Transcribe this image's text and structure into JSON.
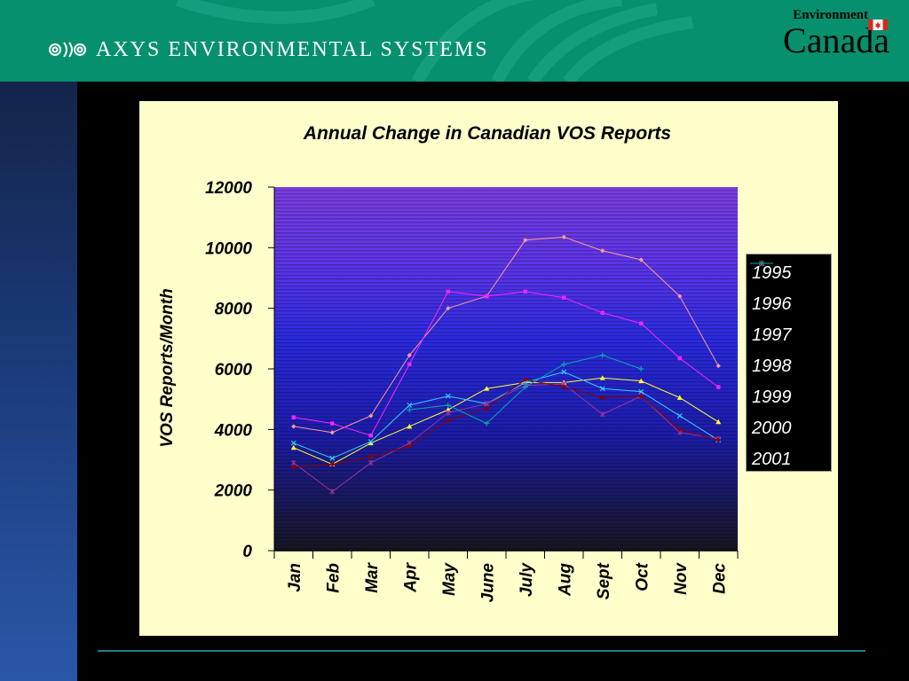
{
  "header": {
    "brand_text": "AXYS ENVIRONMENTAL SYSTEMS",
    "gov_dept": "Environment",
    "gov_country": "Canada",
    "color": "#06906e"
  },
  "chart_data": {
    "type": "line",
    "title": "Annual Change in Canadian VOS Reports",
    "xlabel": "",
    "ylabel": "VOS Reports/Month",
    "ylim": [
      0,
      12000
    ],
    "yticks": [
      0,
      2000,
      4000,
      6000,
      8000,
      10000,
      12000
    ],
    "categories": [
      "Jan",
      "Feb",
      "Mar",
      "Apr",
      "May",
      "June",
      "July",
      "Aug",
      "Sept",
      "Oct",
      "Nov",
      "Dec"
    ],
    "legend_position": "right",
    "series": [
      {
        "name": "1995",
        "color": "#ff9999",
        "marker": "diamond",
        "values": [
          4100,
          3900,
          4450,
          6450,
          8000,
          8400,
          10250,
          10350,
          9900,
          9600,
          8400,
          6100
        ]
      },
      {
        "name": "1996",
        "color": "#ff22ff",
        "marker": "square",
        "values": [
          4400,
          4200,
          3800,
          6150,
          8550,
          8400,
          8550,
          8350,
          7850,
          7500,
          6350,
          5400
        ]
      },
      {
        "name": "1997",
        "color": "#ffff33",
        "marker": "triangle",
        "values": [
          3400,
          2850,
          3550,
          4100,
          4650,
          5350,
          5550,
          5550,
          5700,
          5600,
          5050,
          4250
        ]
      },
      {
        "name": "1998",
        "color": "#33ccff",
        "marker": "x",
        "values": [
          3550,
          3050,
          3600,
          4800,
          5100,
          4850,
          5550,
          5900,
          5350,
          5250,
          4450,
          3650
        ]
      },
      {
        "name": "1999",
        "color": "#993399",
        "marker": "star",
        "values": [
          2900,
          1950,
          2900,
          3550,
          4550,
          4850,
          5450,
          5500,
          4500,
          5100,
          3900,
          3700
        ]
      },
      {
        "name": "2000",
        "color": "#880000",
        "marker": "circle",
        "values": [
          2750,
          2850,
          3100,
          3450,
          4300,
          4700,
          5650,
          5400,
          5050,
          5100,
          4000,
          3650
        ]
      },
      {
        "name": "2001",
        "color": "#00aaaa",
        "marker": "plus",
        "values": [
          null,
          null,
          null,
          4650,
          4800,
          4200,
          5400,
          6150,
          6450,
          6000,
          null,
          null
        ]
      }
    ]
  }
}
